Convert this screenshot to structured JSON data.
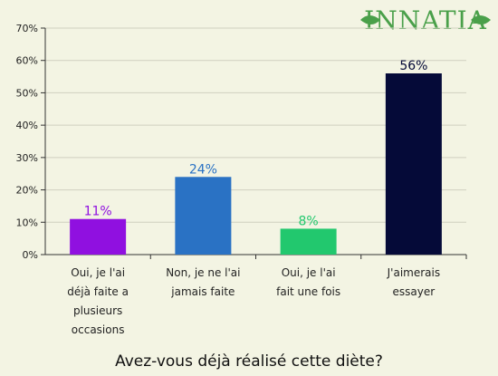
{
  "logo": {
    "text": "INNATIA"
  },
  "chart_data": {
    "type": "bar",
    "title": "Avez-vous déjà réalisé cette diète?",
    "xlabel": "",
    "ylabel": "",
    "ylim": [
      0,
      70
    ],
    "yticks": [
      "0%",
      "10%",
      "20%",
      "30%",
      "40%",
      "50%",
      "60%",
      "70%"
    ],
    "categories": [
      [
        "Oui, je l'ai",
        "déjà faite a",
        "plusieurs",
        "occasions"
      ],
      [
        "Non, je ne l'ai",
        "jamais faite"
      ],
      [
        "Oui, je l'ai",
        "fait une fois"
      ],
      [
        "J'aimerais",
        "essayer"
      ]
    ],
    "values": [
      11,
      24,
      8,
      56
    ],
    "value_labels": [
      "11%",
      "24%",
      "8%",
      "56%"
    ],
    "colors": [
      "#9010e0",
      "#2a72c4",
      "#22c86e",
      "#050a38"
    ],
    "grid": "horizontal"
  }
}
